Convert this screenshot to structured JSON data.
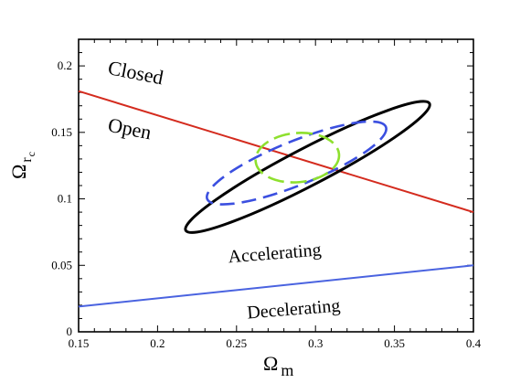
{
  "chart_data": {
    "type": "line",
    "xlabel": "Ω",
    "xlabel_sub": "m",
    "ylabel": "Ω",
    "ylabel_sub": "r",
    "ylabel_subsub": "c",
    "xlim": [
      0.15,
      0.4
    ],
    "ylim": [
      0,
      0.22
    ],
    "x_ticks": [
      0.15,
      0.2,
      0.25,
      0.3,
      0.35,
      0.4
    ],
    "x_tick_labels": [
      "0.15",
      "0.2",
      "0.25",
      "0.3",
      "0.35",
      "0.4"
    ],
    "y_ticks": [
      0,
      0.05,
      0.1,
      0.15,
      0.2
    ],
    "y_tick_labels": [
      "0",
      "0.05",
      "0.1",
      "0.15",
      "0.2"
    ],
    "grid": false,
    "series": [
      {
        "kind": "line",
        "color": "#d42b1e",
        "x": [
          0.15,
          0.4
        ],
        "y": [
          0.181,
          0.09
        ]
      },
      {
        "kind": "line",
        "color": "#4a63e0",
        "x": [
          0.15,
          0.4
        ],
        "y": [
          0.019,
          0.05
        ]
      },
      {
        "kind": "contour",
        "level": "outer",
        "color": "#000000",
        "dash": "solid",
        "center": [
          0.295,
          0.124
        ],
        "semi_axis_x": 0.087,
        "semi_axis_y": 0.014,
        "angle_deg": -27.5
      },
      {
        "kind": "contour",
        "level": "middle",
        "color": "#3b4fe0",
        "dash": "dashed",
        "center": [
          0.288,
          0.127
        ],
        "semi_axis_x": 0.061,
        "semi_axis_y": 0.0165,
        "angle_deg": -22
      },
      {
        "kind": "contour",
        "level": "inner",
        "color": "#8ee02e",
        "dash": "dashed",
        "center": [
          0.2885,
          0.131
        ],
        "semi_axis_x": 0.0265,
        "semi_axis_y": 0.0185,
        "angle_deg": -5
      }
    ],
    "annotations": [
      {
        "text": "Closed",
        "x": 0.168,
        "y": 0.194,
        "rotate": 11,
        "size": 22
      },
      {
        "text": "Open",
        "x": 0.168,
        "y": 0.151,
        "rotate": 11,
        "size": 22
      },
      {
        "text": "Accelerating",
        "x": 0.245,
        "y": 0.052,
        "rotate": -4.5,
        "size": 20
      },
      {
        "text": "Decelerating",
        "x": 0.257,
        "y": 0.01,
        "rotate": -4.5,
        "size": 20
      }
    ]
  }
}
